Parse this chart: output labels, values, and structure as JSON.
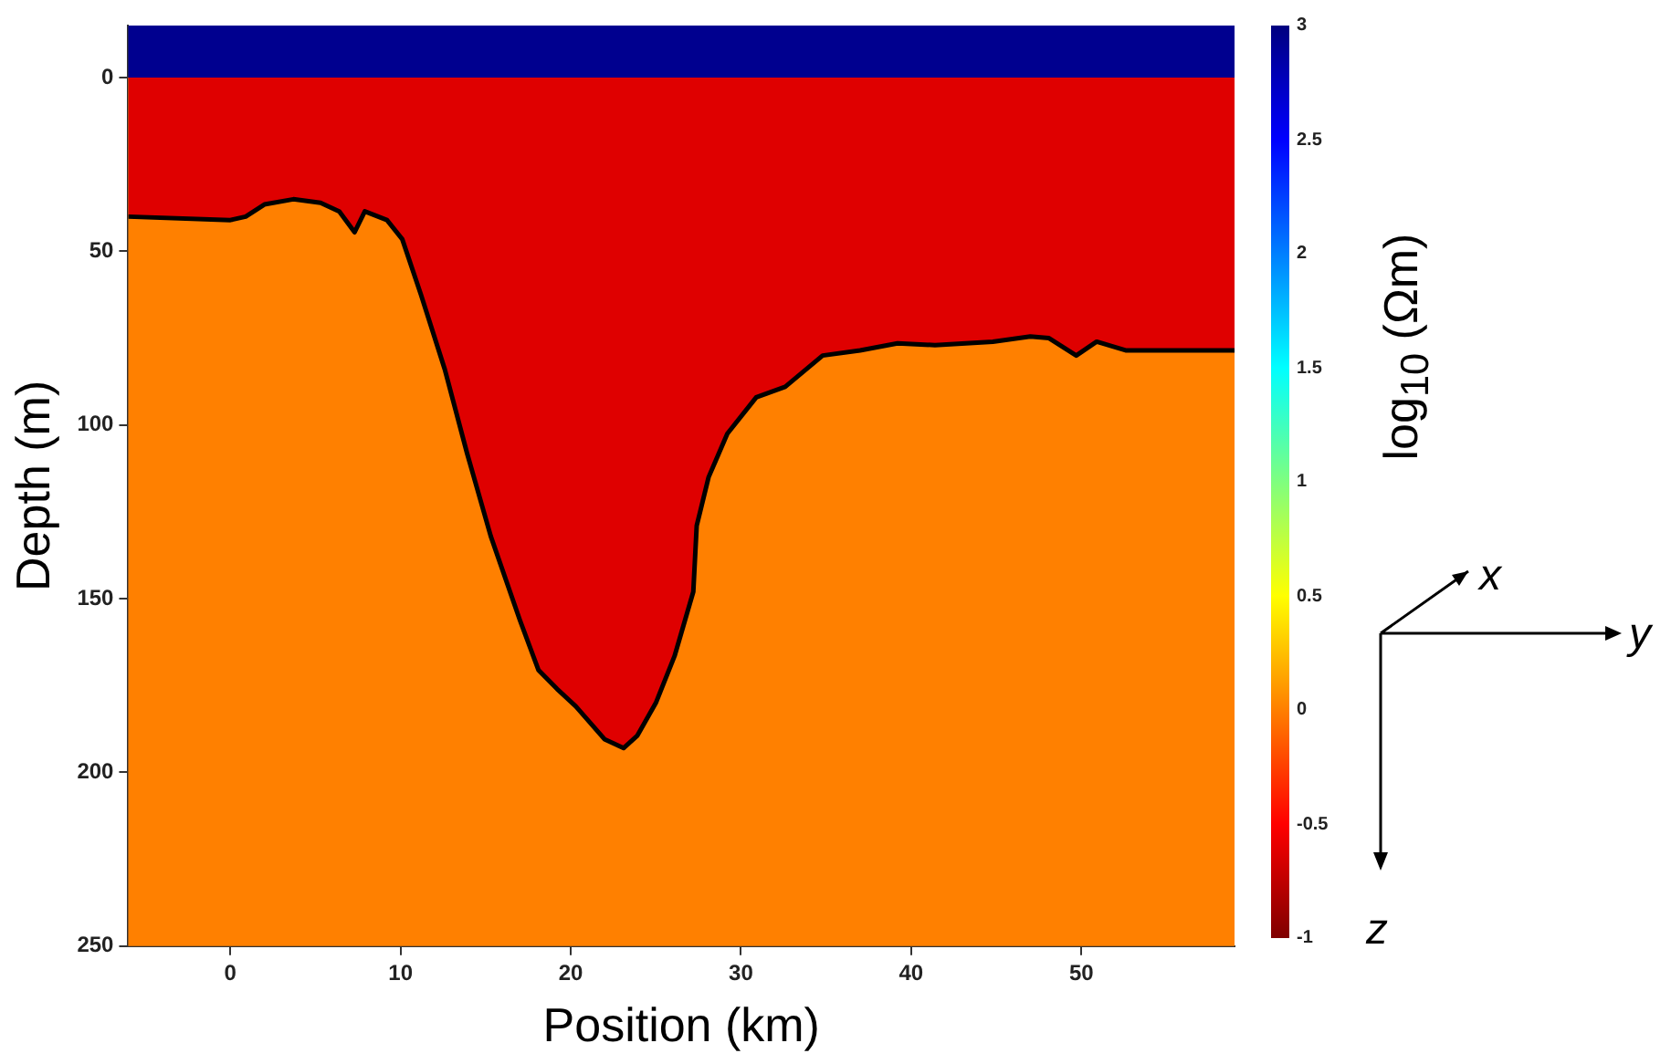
{
  "chart_data": {
    "type": "area",
    "xlabel": "Position (km)",
    "ylabel": "Depth (m)",
    "clabel": "log$_{10}$ (Ωm)",
    "xlim": [
      -6,
      59
    ],
    "xticks": [
      0,
      10,
      20,
      30,
      40,
      50
    ],
    "ylim": [
      250,
      -15
    ],
    "yticks": [
      0,
      50,
      100,
      150,
      200,
      250
    ],
    "clim": [
      -1,
      3
    ],
    "cticks": [
      -1,
      -0.5,
      0,
      0.5,
      1,
      1.5,
      2,
      2.5,
      3
    ],
    "grid": false,
    "legend": false,
    "marker": "none",
    "bands": [
      {
        "axis": "y",
        "from": -15,
        "to": 0,
        "color": "#00008f"
      },
      {
        "axis": "y",
        "from": 0,
        "to": 250,
        "color": "#ff8000"
      }
    ],
    "annotations": [
      "x",
      "y",
      "z"
    ],
    "series": [
      {
        "type": "area",
        "color": "#df0000",
        "x": [
          -6,
          0,
          0.9,
          2,
          3.7,
          5.3,
          6.4,
          7.3,
          7.9,
          9.2,
          10.1,
          11.2,
          12.6,
          13.9,
          15.3,
          17,
          18.1,
          19.2,
          20.3,
          22,
          23.1,
          23.9,
          25,
          26.1,
          27.2,
          27.4,
          28.1,
          29.2,
          30.9,
          32.6,
          34.8,
          37,
          39.2,
          41.4,
          44.8,
          47,
          48.1,
          49.7,
          50.9,
          52.6,
          53.7,
          59
        ],
        "values": [
          40,
          41,
          40,
          36.5,
          35,
          36,
          38.5,
          44.5,
          38.5,
          41,
          46.5,
          62.5,
          84,
          108,
          132,
          156,
          170.5,
          176,
          181,
          190.5,
          193,
          189.5,
          180,
          166.5,
          148,
          129,
          115,
          102.5,
          92,
          89,
          80,
          78.5,
          76.5,
          77,
          76,
          74.5,
          75,
          80,
          76,
          78.5,
          78.5,
          78.5
        ]
      }
    ]
  }
}
